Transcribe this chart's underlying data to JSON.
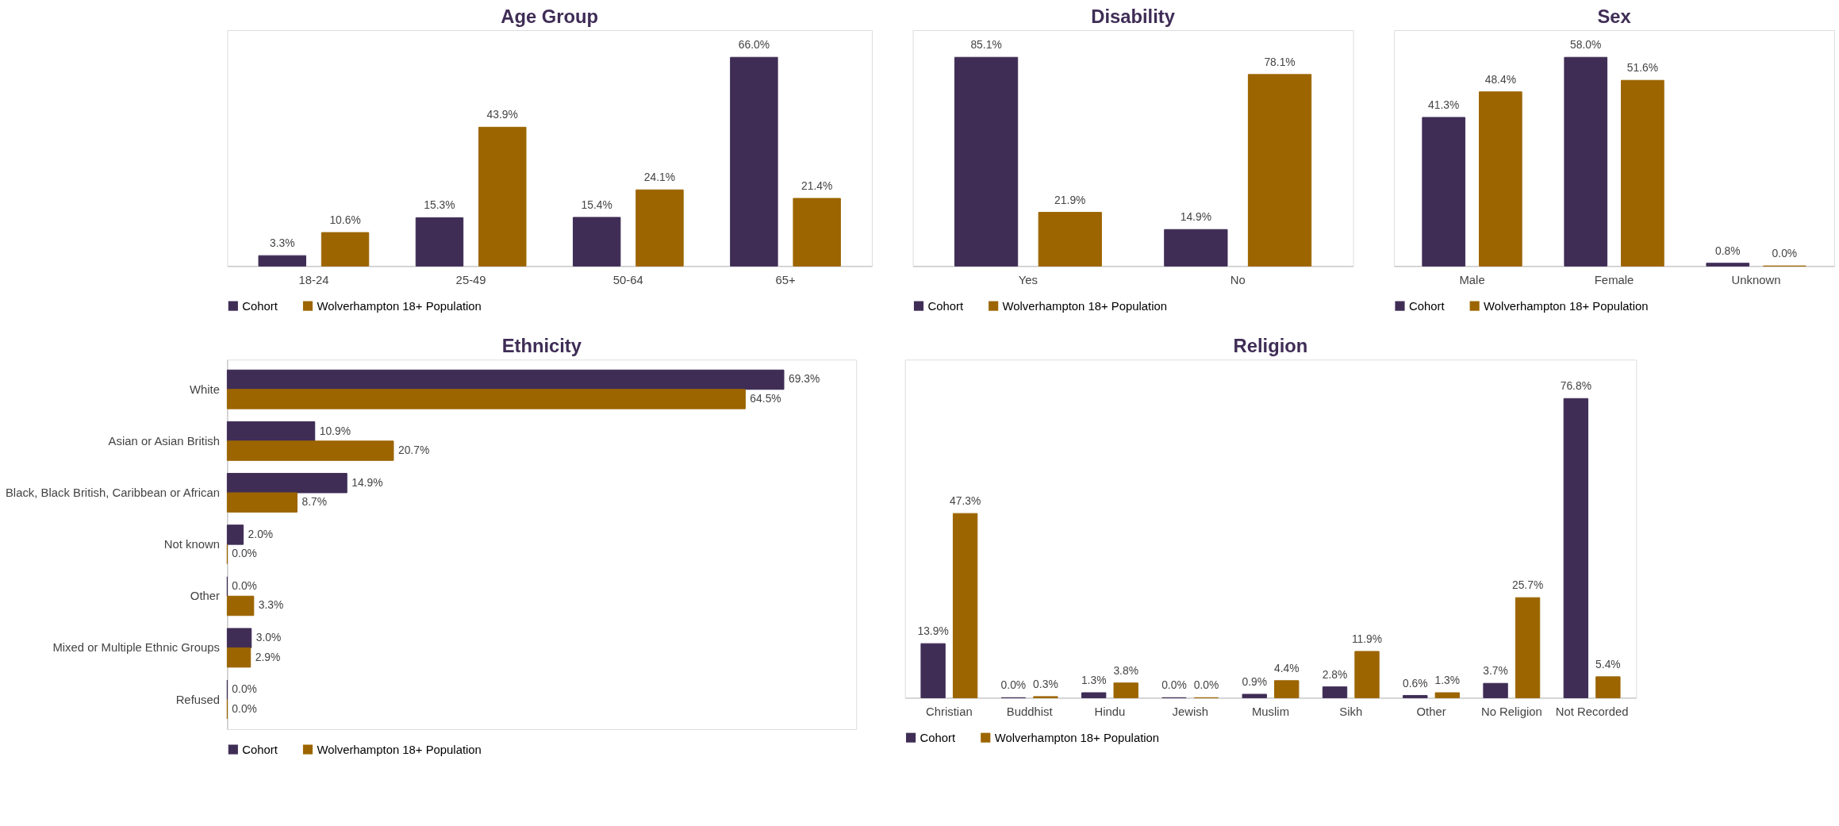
{
  "chart_data": [
    {
      "type": "bar",
      "title": "Age Group",
      "categories": [
        "18-24",
        "25-49",
        "50-64",
        "65+"
      ],
      "series": [
        {
          "name": "Cohort",
          "color": "#3f2d56",
          "values": [
            3.3,
            15.3,
            15.4,
            66.0
          ],
          "value_labels": [
            "3.3%",
            "15.3%",
            "15.4%",
            "66.0%"
          ]
        },
        {
          "name": "Wolverhampton 18+ Population",
          "color": "#9c6500",
          "values": [
            10.6,
            43.9,
            24.1,
            21.4
          ],
          "value_labels": [
            "10.6%",
            "43.9%",
            "24.1%",
            "21.4%"
          ]
        }
      ],
      "legend": "bottom",
      "grid": false
    },
    {
      "type": "bar",
      "title": "Disability",
      "categories": [
        "Yes",
        "No"
      ],
      "series": [
        {
          "name": "Cohort",
          "color": "#3f2d56",
          "values": [
            85.1,
            14.9
          ],
          "value_labels": [
            "85.1%",
            "14.9%"
          ]
        },
        {
          "name": "Wolverhampton 18+ Population",
          "color": "#9c6500",
          "values": [
            21.9,
            78.1
          ],
          "value_labels": [
            "21.9%",
            "78.1%"
          ]
        }
      ],
      "legend": "bottom",
      "grid": false
    },
    {
      "type": "bar",
      "title": "Sex",
      "categories": [
        "Male",
        "Female",
        "Unknown"
      ],
      "series": [
        {
          "name": "Cohort",
          "color": "#3f2d56",
          "values": [
            41.3,
            58.0,
            0.8
          ],
          "value_labels": [
            "41.3%",
            "58.0%",
            "0.8%"
          ]
        },
        {
          "name": "Wolverhampton 18+ Population",
          "color": "#9c6500",
          "values": [
            48.4,
            51.6,
            0.0
          ],
          "value_labels": [
            "48.4%",
            "51.6%",
            "0.0%"
          ]
        }
      ],
      "legend": "bottom",
      "grid": false
    },
    {
      "type": "bar",
      "title": "Ethnicity",
      "orientation": "horizontal",
      "categories": [
        "White",
        "Asian or Asian British",
        "Black, Black British, Caribbean or African",
        "Not known",
        "Other",
        "Mixed or Multiple Ethnic Groups",
        "Refused"
      ],
      "series": [
        {
          "name": "Cohort",
          "color": "#3f2d56",
          "values": [
            69.3,
            10.9,
            14.9,
            2.0,
            0.0,
            3.0,
            0.0
          ],
          "value_labels": [
            "69.3%",
            "10.9%",
            "14.9%",
            "2.0%",
            "0.0%",
            "3.0%",
            "0.0%"
          ]
        },
        {
          "name": "Wolverhampton 18+ Population",
          "color": "#9c6500",
          "values": [
            64.5,
            20.7,
            8.7,
            0.0,
            3.3,
            2.9,
            0.0
          ],
          "value_labels": [
            "64.5%",
            "20.7%",
            "8.7%",
            "0.0%",
            "3.3%",
            "2.9%",
            "0.0%"
          ]
        }
      ],
      "legend": "bottom",
      "grid": false
    },
    {
      "type": "bar",
      "title": "Religion",
      "categories": [
        "Christian",
        "Buddhist",
        "Hindu",
        "Jewish",
        "Muslim",
        "Sikh",
        "Other",
        "No Religion",
        "Not Recorded"
      ],
      "series": [
        {
          "name": "Cohort",
          "color": "#3f2d56",
          "values": [
            13.9,
            0.0,
            1.3,
            0.0,
            0.9,
            2.8,
            0.6,
            3.7,
            76.8
          ],
          "value_labels": [
            "13.9%",
            "0.0%",
            "1.3%",
            "0.0%",
            "0.9%",
            "2.8%",
            "0.6%",
            "3.7%",
            "76.8%"
          ]
        },
        {
          "name": "Wolverhampton 18+ Population",
          "color": "#9c6500",
          "values": [
            47.3,
            0.3,
            3.8,
            0.0,
            4.4,
            11.9,
            1.3,
            25.7,
            5.4
          ],
          "value_labels": [
            "47.3%",
            "0.3%",
            "3.8%",
            "0.0%",
            "4.4%",
            "11.9%",
            "1.3%",
            "25.7%",
            "5.4%"
          ]
        }
      ],
      "legend": "bottom",
      "grid": false
    }
  ]
}
